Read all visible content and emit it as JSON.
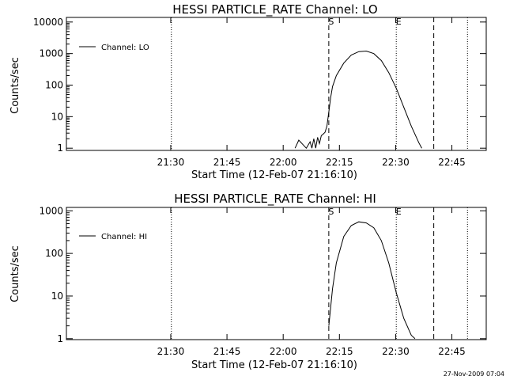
{
  "chart_data": [
    {
      "type": "line",
      "title": "HESSI PARTICLE_RATE Channel: LO",
      "xlabel": "Start Time (12-Feb-07 21:16:10)",
      "ylabel": "Counts/sec",
      "y_scale": "log",
      "x_ticks": [
        "21:30",
        "21:45",
        "22:00",
        "22:15",
        "22:30",
        "22:45"
      ],
      "y_ticks": [
        "1",
        "10",
        "100",
        "1000",
        "10000"
      ],
      "xlim_minutes": [
        -14,
        98
      ],
      "ylim": [
        0.85,
        14000
      ],
      "legend": "Channel: LO",
      "legend_position": "top-left",
      "series": [
        {
          "name": "Channel: LO",
          "x_minutes": [
            47,
            48,
            50,
            51,
            51.5,
            52,
            52.5,
            53,
            53.5,
            54,
            54.5,
            55,
            55.5,
            56,
            56.5,
            57,
            58,
            60,
            62,
            64,
            66,
            68,
            70,
            72,
            74,
            76,
            78,
            80,
            80.8
          ],
          "y": [
            1,
            1.8,
            1,
            1.6,
            1,
            2,
            1,
            2.2,
            1.4,
            2.5,
            2.8,
            3.2,
            5,
            14,
            40,
            90,
            200,
            500,
            900,
            1150,
            1200,
            1000,
            600,
            250,
            80,
            20,
            5,
            1.5,
            1
          ]
        }
      ],
      "markers": [
        {
          "label": "S",
          "x_minutes": 56,
          "style": "dashed"
        },
        {
          "label": "E",
          "x_minutes": 74,
          "style": "dotted"
        },
        {
          "label": "",
          "x_minutes": 84,
          "style": "dashed"
        },
        {
          "label": "",
          "x_minutes": 14,
          "style": "dotted"
        },
        {
          "label": "",
          "x_minutes": 93,
          "style": "dotted"
        }
      ]
    },
    {
      "type": "line",
      "title": "HESSI PARTICLE_RATE Channel: HI",
      "xlabel": "Start Time (12-Feb-07 21:16:10)",
      "ylabel": "Counts/sec",
      "y_scale": "log",
      "x_ticks": [
        "21:30",
        "21:45",
        "22:00",
        "22:15",
        "22:30",
        "22:45"
      ],
      "y_ticks": [
        "1",
        "10",
        "100",
        "1000"
      ],
      "xlim_minutes": [
        -14,
        98
      ],
      "ylim": [
        0.95,
        1200
      ],
      "legend": "Channel: HI",
      "legend_position": "top-left",
      "series": [
        {
          "name": "Channel: HI",
          "x_minutes": [
            56,
            57,
            58,
            60,
            62,
            64,
            66,
            68,
            70,
            72,
            74,
            76,
            78,
            79
          ],
          "y": [
            2,
            15,
            60,
            250,
            450,
            550,
            520,
            400,
            200,
            60,
            12,
            3,
            1.2,
            1
          ]
        }
      ],
      "markers": [
        {
          "label": "S",
          "x_minutes": 56,
          "style": "dashed"
        },
        {
          "label": "E",
          "x_minutes": 74,
          "style": "dotted"
        },
        {
          "label": "",
          "x_minutes": 84,
          "style": "dashed"
        },
        {
          "label": "",
          "x_minutes": 14,
          "style": "dotted"
        },
        {
          "label": "",
          "x_minutes": 93,
          "style": "dotted"
        }
      ]
    }
  ],
  "stamp": "27-Nov-2009 07:04"
}
